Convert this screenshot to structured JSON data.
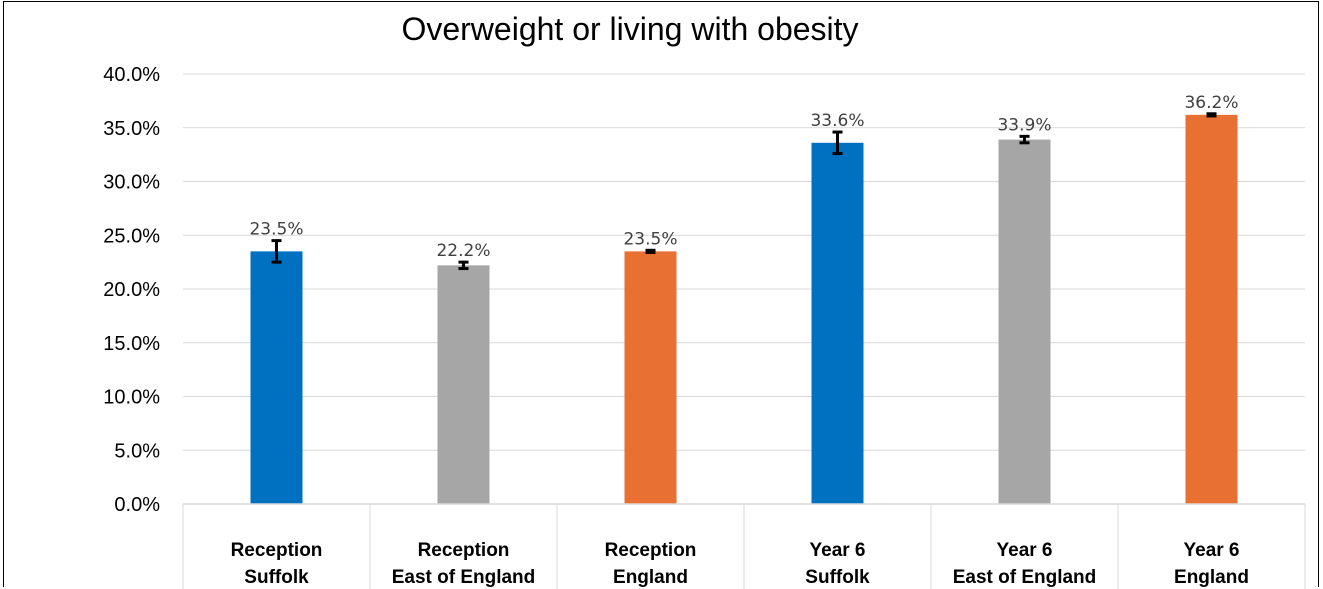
{
  "chart_data": {
    "type": "bar",
    "title": "Overweight or living with obesity",
    "xlabel": "",
    "ylabel": "",
    "ylim": [
      0,
      40
    ],
    "yticks": [
      "0.0%",
      "5.0%",
      "10.0%",
      "15.0%",
      "20.0%",
      "25.0%",
      "30.0%",
      "35.0%",
      "40.0%"
    ],
    "grid": true,
    "categories": [
      {
        "line1": "Reception",
        "line2": "Suffolk"
      },
      {
        "line1": "Reception",
        "line2": "East of England"
      },
      {
        "line1": "Reception",
        "line2": "England"
      },
      {
        "line1": "Year 6",
        "line2": "Suffolk"
      },
      {
        "line1": "Year 6",
        "line2": "East of England"
      },
      {
        "line1": "Year 6",
        "line2": "England"
      }
    ],
    "values": [
      23.5,
      22.2,
      23.5,
      33.6,
      33.9,
      36.2
    ],
    "data_labels": [
      "23.5%",
      "22.2%",
      "23.5%",
      "33.6%",
      "33.9%",
      "36.2%"
    ],
    "error_low": [
      22.5,
      21.9,
      23.4,
      32.6,
      33.6,
      36.1
    ],
    "error_high": [
      24.5,
      22.5,
      23.6,
      34.6,
      34.2,
      36.3
    ],
    "bar_colors": [
      "#0070C0",
      "#A6A6A6",
      "#E87033",
      "#0070C0",
      "#A6A6A6",
      "#E87033"
    ]
  }
}
